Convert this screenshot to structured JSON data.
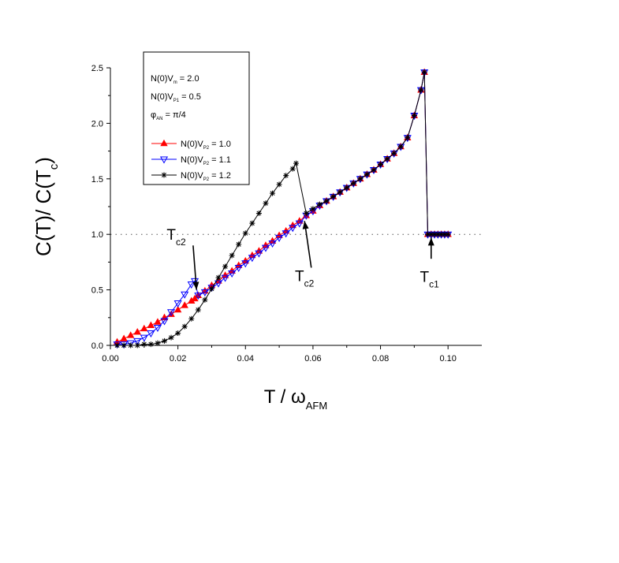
{
  "chart_data": {
    "type": "scatter",
    "title": "",
    "xlabel": "T / ω",
    "xlabel_sub": "AFM",
    "ylabel": "C(T)/ C(T",
    "ylabel_sub": "c",
    "ylabel_close": ")",
    "xlim": [
      0.0,
      0.11
    ],
    "ylim": [
      0.0,
      2.5
    ],
    "xticks": [
      "0.00",
      "0.02",
      "0.04",
      "0.06",
      "0.08",
      "0.10"
    ],
    "xtick_values": [
      0.0,
      0.02,
      0.04,
      0.06,
      0.08,
      0.1
    ],
    "yticks": [
      "0.0",
      "0.5",
      "1.0",
      "1.5",
      "2.0",
      "2.5"
    ],
    "ytick_values": [
      0.0,
      0.5,
      1.0,
      1.5,
      2.0,
      2.5
    ],
    "reference_line": {
      "y": 1.0,
      "style": "dotted"
    },
    "params": [
      {
        "main": "N(0)V",
        "sub": "m",
        "rest": " = 2.0"
      },
      {
        "main": "N(0)V",
        "sub": "P1",
        "rest": " = 0.5"
      },
      {
        "main": "φ",
        "sub": "AN",
        "rest": " =  π/4"
      }
    ],
    "legend_position": "top-left",
    "series": [
      {
        "name_main": "N(0)V",
        "name_sub": "P2",
        "name_rest": " = 1.0",
        "color": "#ff0000",
        "marker": "triangle-up-filled",
        "points": [
          [
            0.002,
            0.03
          ],
          [
            0.004,
            0.06
          ],
          [
            0.006,
            0.09
          ],
          [
            0.008,
            0.12
          ],
          [
            0.01,
            0.15
          ],
          [
            0.012,
            0.18
          ],
          [
            0.014,
            0.21
          ],
          [
            0.016,
            0.25
          ],
          [
            0.018,
            0.28
          ],
          [
            0.02,
            0.32
          ],
          [
            0.022,
            0.36
          ],
          [
            0.024,
            0.4
          ],
          [
            0.025,
            0.42
          ],
          [
            0.026,
            0.45
          ],
          [
            0.028,
            0.49
          ],
          [
            0.03,
            0.54
          ],
          [
            0.032,
            0.58
          ],
          [
            0.034,
            0.63
          ],
          [
            0.036,
            0.67
          ],
          [
            0.038,
            0.72
          ],
          [
            0.04,
            0.76
          ],
          [
            0.042,
            0.81
          ],
          [
            0.044,
            0.85
          ],
          [
            0.046,
            0.9
          ],
          [
            0.048,
            0.94
          ],
          [
            0.05,
            0.99
          ],
          [
            0.052,
            1.03
          ],
          [
            0.054,
            1.08
          ],
          [
            0.056,
            1.12
          ],
          [
            0.058,
            1.17
          ],
          [
            0.06,
            1.21
          ],
          [
            0.062,
            1.26
          ],
          [
            0.064,
            1.3
          ],
          [
            0.066,
            1.34
          ],
          [
            0.068,
            1.38
          ],
          [
            0.07,
            1.42
          ],
          [
            0.072,
            1.46
          ],
          [
            0.074,
            1.5
          ],
          [
            0.076,
            1.54
          ],
          [
            0.078,
            1.58
          ],
          [
            0.08,
            1.63
          ],
          [
            0.082,
            1.68
          ],
          [
            0.084,
            1.73
          ],
          [
            0.086,
            1.79
          ],
          [
            0.088,
            1.87
          ],
          [
            0.09,
            2.07
          ],
          [
            0.092,
            2.3
          ],
          [
            0.093,
            2.46
          ],
          [
            0.094,
            1.0
          ],
          [
            0.095,
            1.0
          ],
          [
            0.096,
            1.0
          ],
          [
            0.097,
            1.0
          ],
          [
            0.098,
            1.0
          ],
          [
            0.099,
            1.0
          ],
          [
            0.1,
            1.0
          ]
        ]
      },
      {
        "name_main": "N(0)V",
        "name_sub": "P2",
        "name_rest": " = 1.1",
        "color": "#0000ff",
        "marker": "triangle-down-open",
        "points": [
          [
            0.002,
            0.01
          ],
          [
            0.004,
            0.01
          ],
          [
            0.006,
            0.02
          ],
          [
            0.008,
            0.04
          ],
          [
            0.01,
            0.07
          ],
          [
            0.012,
            0.11
          ],
          [
            0.014,
            0.16
          ],
          [
            0.016,
            0.22
          ],
          [
            0.018,
            0.3
          ],
          [
            0.02,
            0.38
          ],
          [
            0.022,
            0.46
          ],
          [
            0.024,
            0.55
          ],
          [
            0.025,
            0.58
          ],
          [
            0.026,
            0.45
          ],
          [
            0.028,
            0.48
          ],
          [
            0.03,
            0.52
          ],
          [
            0.032,
            0.56
          ],
          [
            0.034,
            0.61
          ],
          [
            0.036,
            0.65
          ],
          [
            0.038,
            0.7
          ],
          [
            0.04,
            0.74
          ],
          [
            0.042,
            0.79
          ],
          [
            0.044,
            0.83
          ],
          [
            0.046,
            0.88
          ],
          [
            0.048,
            0.92
          ],
          [
            0.05,
            0.97
          ],
          [
            0.052,
            1.01
          ],
          [
            0.054,
            1.06
          ],
          [
            0.056,
            1.1
          ],
          [
            0.058,
            1.17
          ],
          [
            0.06,
            1.21
          ],
          [
            0.062,
            1.26
          ],
          [
            0.064,
            1.3
          ],
          [
            0.066,
            1.34
          ],
          [
            0.068,
            1.38
          ],
          [
            0.07,
            1.42
          ],
          [
            0.072,
            1.46
          ],
          [
            0.074,
            1.5
          ],
          [
            0.076,
            1.54
          ],
          [
            0.078,
            1.58
          ],
          [
            0.08,
            1.63
          ],
          [
            0.082,
            1.68
          ],
          [
            0.084,
            1.73
          ],
          [
            0.086,
            1.79
          ],
          [
            0.088,
            1.87
          ],
          [
            0.09,
            2.07
          ],
          [
            0.092,
            2.3
          ],
          [
            0.093,
            2.46
          ],
          [
            0.094,
            1.0
          ],
          [
            0.095,
            1.0
          ],
          [
            0.096,
            1.0
          ],
          [
            0.097,
            1.0
          ],
          [
            0.098,
            1.0
          ],
          [
            0.099,
            1.0
          ],
          [
            0.1,
            1.0
          ]
        ]
      },
      {
        "name_main": "N(0)V",
        "name_sub": "P2",
        "name_rest": " = 1.2",
        "color": "#000000",
        "marker": "star",
        "points": [
          [
            0.002,
            0.0
          ],
          [
            0.004,
            0.0
          ],
          [
            0.006,
            0.0
          ],
          [
            0.008,
            0.0
          ],
          [
            0.01,
            0.01
          ],
          [
            0.012,
            0.01
          ],
          [
            0.014,
            0.02
          ],
          [
            0.016,
            0.04
          ],
          [
            0.018,
            0.07
          ],
          [
            0.02,
            0.11
          ],
          [
            0.022,
            0.17
          ],
          [
            0.024,
            0.24
          ],
          [
            0.026,
            0.32
          ],
          [
            0.028,
            0.41
          ],
          [
            0.03,
            0.51
          ],
          [
            0.032,
            0.61
          ],
          [
            0.034,
            0.71
          ],
          [
            0.036,
            0.81
          ],
          [
            0.038,
            0.91
          ],
          [
            0.04,
            1.01
          ],
          [
            0.042,
            1.1
          ],
          [
            0.044,
            1.19
          ],
          [
            0.046,
            1.28
          ],
          [
            0.048,
            1.37
          ],
          [
            0.05,
            1.45
          ],
          [
            0.052,
            1.53
          ],
          [
            0.054,
            1.59
          ],
          [
            0.055,
            1.64
          ],
          [
            0.058,
            1.19
          ],
          [
            0.06,
            1.23
          ],
          [
            0.062,
            1.27
          ],
          [
            0.064,
            1.3
          ],
          [
            0.066,
            1.34
          ],
          [
            0.068,
            1.38
          ],
          [
            0.07,
            1.42
          ],
          [
            0.072,
            1.46
          ],
          [
            0.074,
            1.5
          ],
          [
            0.076,
            1.54
          ],
          [
            0.078,
            1.58
          ],
          [
            0.08,
            1.63
          ],
          [
            0.082,
            1.68
          ],
          [
            0.084,
            1.73
          ],
          [
            0.086,
            1.79
          ],
          [
            0.088,
            1.87
          ],
          [
            0.09,
            2.07
          ],
          [
            0.092,
            2.3
          ],
          [
            0.093,
            2.46
          ],
          [
            0.094,
            1.0
          ],
          [
            0.095,
            1.0
          ],
          [
            0.096,
            1.0
          ],
          [
            0.097,
            1.0
          ],
          [
            0.098,
            1.0
          ],
          [
            0.099,
            1.0
          ],
          [
            0.1,
            1.0
          ]
        ]
      }
    ],
    "annotations": [
      {
        "main": "T",
        "sub": "c2",
        "text_at": [
          0.0195,
          0.95
        ],
        "arrow_from": [
          0.0245,
          0.9
        ],
        "arrow_to": [
          0.0255,
          0.5
        ]
      },
      {
        "main": "T",
        "sub": "c2",
        "text_at": [
          0.0575,
          0.58
        ],
        "arrow_from": [
          0.0595,
          0.7
        ],
        "arrow_to": [
          0.0575,
          1.12
        ]
      },
      {
        "main": "T",
        "sub": "c1",
        "text_at": [
          0.0945,
          0.57
        ],
        "arrow_from": [
          0.095,
          0.78
        ],
        "arrow_to": [
          0.095,
          0.97
        ]
      }
    ]
  }
}
